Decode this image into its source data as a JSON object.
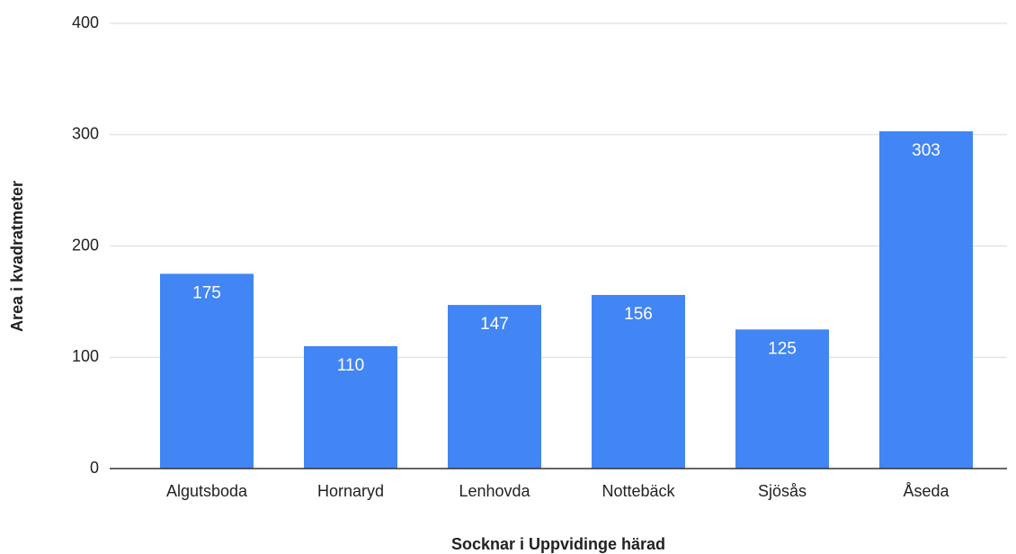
{
  "chart_data": {
    "type": "bar",
    "x_label": "Socknar i Uppvidinge härad",
    "y_label": "Area i kvadratmeter",
    "categories": [
      "Algutsboda",
      "Hornaryd",
      "Lenhovda",
      "Nottebäck",
      "Sjösås",
      "Åseda"
    ],
    "values": [
      175,
      110,
      147,
      156,
      125,
      303
    ],
    "color": "#4285f4",
    "ylim": [
      0,
      400
    ],
    "yticks": [
      0,
      100,
      200,
      300,
      400
    ],
    "grid": true
  }
}
